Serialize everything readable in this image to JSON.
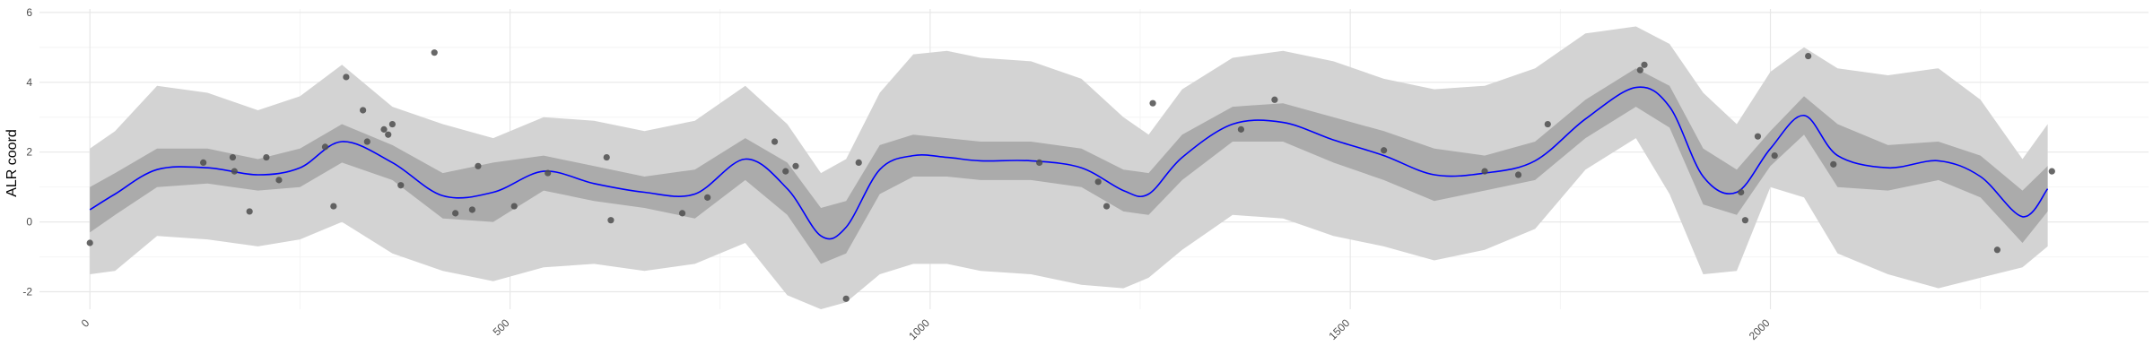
{
  "colors": {
    "background": "#ffffff",
    "grid_major": "#e8e8e8",
    "grid_minor": "#f4f4f4",
    "outer_band": "#d3d3d3",
    "inner_band": "#ababab",
    "mean_line": "#0000ff",
    "points": "#4d4d4d"
  },
  "chart_data": {
    "type": "line",
    "title": "",
    "xlabel": "",
    "ylabel": "ALR coord",
    "xlim": [
      -60,
      2450
    ],
    "ylim": [
      -2.5,
      6.1
    ],
    "x_ticks": [
      0,
      500,
      1000,
      1500,
      2000
    ],
    "x_tick_labels": [
      "0",
      "500",
      "1000",
      "1500",
      "2000"
    ],
    "y_ticks": [
      -2,
      0,
      2,
      4,
      6
    ],
    "y_tick_labels": [
      "-2",
      "0",
      "2",
      "4",
      "6"
    ],
    "grid": true,
    "legend": "none",
    "series": [
      {
        "kind": "ribbon_outer",
        "x": [
          0,
          30,
          80,
          140,
          200,
          250,
          300,
          360,
          420,
          480,
          540,
          600,
          660,
          720,
          780,
          830,
          870,
          900,
          940,
          980,
          1020,
          1060,
          1120,
          1180,
          1230,
          1260,
          1300,
          1360,
          1420,
          1480,
          1540,
          1600,
          1660,
          1720,
          1780,
          1840,
          1880,
          1920,
          1960,
          2000,
          2040,
          2080,
          2140,
          2200,
          2250,
          2300,
          2330
        ],
        "upper": [
          2.1,
          2.6,
          3.9,
          3.7,
          3.2,
          3.6,
          4.5,
          3.3,
          2.8,
          2.4,
          3.0,
          2.9,
          2.6,
          2.9,
          3.9,
          2.8,
          1.4,
          1.8,
          3.7,
          4.8,
          4.9,
          4.7,
          4.6,
          4.1,
          3.0,
          2.5,
          3.8,
          4.7,
          4.9,
          4.6,
          4.1,
          3.8,
          3.9,
          4.4,
          5.4,
          5.6,
          5.1,
          3.7,
          2.8,
          4.3,
          5.0,
          4.4,
          4.2,
          4.4,
          3.5,
          1.8,
          2.8
        ],
        "lower": [
          -1.5,
          -1.4,
          -0.4,
          -0.5,
          -0.7,
          -0.5,
          0.0,
          -0.9,
          -1.4,
          -1.7,
          -1.3,
          -1.2,
          -1.4,
          -1.2,
          -0.6,
          -2.1,
          -2.5,
          -2.3,
          -1.5,
          -1.2,
          -1.2,
          -1.4,
          -1.5,
          -1.8,
          -1.9,
          -1.6,
          -0.8,
          0.2,
          0.1,
          -0.4,
          -0.7,
          -1.1,
          -0.8,
          -0.2,
          1.5,
          2.4,
          0.8,
          -1.5,
          -1.4,
          1.0,
          0.7,
          -0.9,
          -1.5,
          -1.9,
          -1.6,
          -1.3,
          -0.7
        ]
      },
      {
        "kind": "ribbon_inner",
        "x": [
          0,
          30,
          80,
          140,
          200,
          250,
          300,
          360,
          420,
          480,
          540,
          600,
          660,
          720,
          780,
          830,
          870,
          900,
          940,
          980,
          1020,
          1060,
          1120,
          1180,
          1230,
          1260,
          1300,
          1360,
          1420,
          1480,
          1540,
          1600,
          1660,
          1720,
          1780,
          1840,
          1880,
          1920,
          1960,
          2000,
          2040,
          2080,
          2140,
          2200,
          2250,
          2300,
          2330
        ],
        "upper": [
          1.0,
          1.4,
          2.1,
          2.1,
          1.8,
          2.1,
          2.8,
          2.2,
          1.4,
          1.7,
          1.9,
          1.6,
          1.3,
          1.5,
          2.4,
          1.7,
          0.4,
          0.6,
          2.2,
          2.5,
          2.4,
          2.3,
          2.3,
          2.1,
          1.5,
          1.4,
          2.5,
          3.3,
          3.4,
          3.0,
          2.6,
          2.1,
          1.9,
          2.3,
          3.5,
          4.4,
          3.9,
          2.1,
          1.5,
          2.6,
          3.6,
          2.8,
          2.2,
          2.3,
          1.9,
          0.9,
          1.6
        ],
        "lower": [
          -0.3,
          0.2,
          1.0,
          1.1,
          0.9,
          1.0,
          1.7,
          1.2,
          0.1,
          0.0,
          0.9,
          0.6,
          0.4,
          0.1,
          1.2,
          0.2,
          -1.2,
          -0.9,
          0.8,
          1.3,
          1.3,
          1.2,
          1.2,
          1.0,
          0.3,
          0.2,
          1.2,
          2.3,
          2.3,
          1.7,
          1.2,
          0.6,
          0.9,
          1.2,
          2.4,
          3.3,
          2.7,
          0.5,
          0.2,
          1.6,
          2.5,
          1.0,
          0.9,
          1.2,
          0.7,
          -0.6,
          0.3
        ]
      },
      {
        "kind": "mean",
        "x": [
          0,
          30,
          80,
          140,
          200,
          250,
          300,
          360,
          420,
          480,
          540,
          600,
          660,
          720,
          780,
          830,
          870,
          900,
          940,
          980,
          1020,
          1060,
          1120,
          1180,
          1230,
          1260,
          1300,
          1360,
          1420,
          1480,
          1540,
          1600,
          1660,
          1720,
          1780,
          1840,
          1880,
          1920,
          1960,
          2000,
          2040,
          2080,
          2140,
          2200,
          2250,
          2300,
          2330
        ],
        "y": [
          0.35,
          0.8,
          1.5,
          1.55,
          1.35,
          1.55,
          2.3,
          1.7,
          0.75,
          0.85,
          1.45,
          1.1,
          0.85,
          0.8,
          1.8,
          0.95,
          -0.4,
          -0.15,
          1.5,
          1.9,
          1.85,
          1.75,
          1.75,
          1.55,
          0.9,
          0.8,
          1.85,
          2.8,
          2.85,
          2.35,
          1.9,
          1.35,
          1.4,
          1.75,
          2.95,
          3.85,
          3.3,
          1.3,
          0.85,
          2.1,
          3.05,
          1.9,
          1.55,
          1.75,
          1.3,
          0.15,
          0.95
        ]
      },
      {
        "kind": "points",
        "x": [
          0,
          135,
          170,
          172,
          190,
          210,
          225,
          280,
          290,
          305,
          325,
          330,
          350,
          355,
          360,
          370,
          410,
          435,
          455,
          462,
          505,
          545,
          615,
          620,
          705,
          735,
          815,
          828,
          840,
          900,
          915,
          1130,
          1200,
          1210,
          1265,
          1370,
          1410,
          1540,
          1660,
          1700,
          1735,
          1845,
          1850,
          1965,
          1970,
          1985,
          2005,
          2045,
          2075,
          2270,
          2335
        ],
        "y": [
          -0.6,
          1.7,
          1.85,
          1.45,
          0.3,
          1.85,
          1.2,
          2.15,
          0.45,
          4.15,
          3.2,
          2.3,
          2.65,
          2.5,
          2.8,
          1.05,
          4.85,
          0.25,
          0.35,
          1.6,
          0.45,
          1.4,
          1.85,
          0.05,
          0.25,
          0.7,
          2.3,
          1.45,
          1.6,
          -2.2,
          1.7,
          1.7,
          1.15,
          0.45,
          3.4,
          2.65,
          3.5,
          2.05,
          1.45,
          1.35,
          2.8,
          4.35,
          4.5,
          0.85,
          0.05,
          2.45,
          1.9,
          4.75,
          1.65,
          -0.8,
          1.45
        ]
      }
    ]
  }
}
